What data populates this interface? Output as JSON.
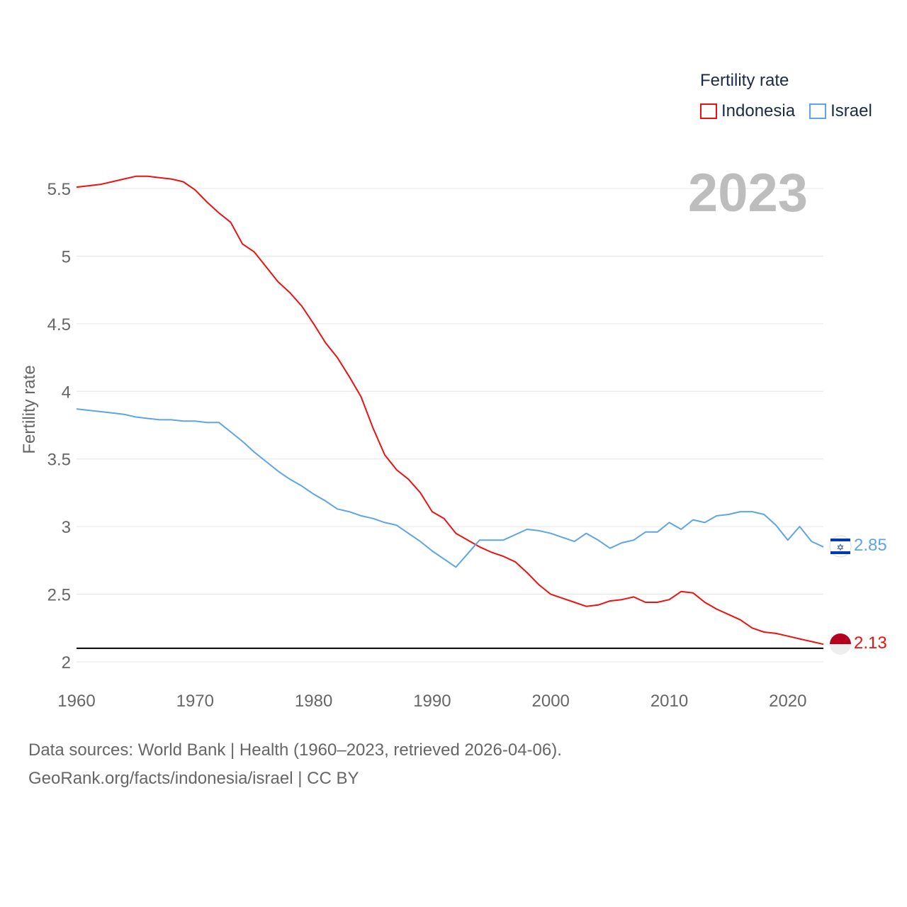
{
  "legend": {
    "title": "Fertility rate",
    "items": [
      {
        "name": "Indonesia",
        "color": "#ee1111"
      },
      {
        "name": "Israel",
        "color": "#5ea4e6"
      }
    ]
  },
  "year_label": "2023",
  "footer": {
    "line1": "Data sources: World Bank | Health (1960–2023, retrieved 2026-04-06).",
    "line2": "GeoRank.org/facts/indonesia/israel | CC BY"
  },
  "end_labels": {
    "israel": "2.85",
    "indonesia": "2.13"
  },
  "chart_data": {
    "type": "line",
    "title": "Fertility rate",
    "xlabel": "",
    "ylabel": "Fertility rate",
    "xlim": [
      1960,
      2023
    ],
    "ylim": [
      2.0,
      5.6
    ],
    "x_ticks": [
      1960,
      1970,
      1980,
      1990,
      2000,
      2010,
      2020
    ],
    "y_ticks": [
      2,
      2.5,
      3,
      3.5,
      4,
      4.5,
      5,
      5.5
    ],
    "y_tick_labels": [
      "2",
      "2.5",
      "3",
      "3.5",
      "4",
      "4.5",
      "5",
      "5.5"
    ],
    "reference_line": 2.1,
    "grid": true,
    "x": [
      1960,
      1961,
      1962,
      1963,
      1964,
      1965,
      1966,
      1967,
      1968,
      1969,
      1970,
      1971,
      1972,
      1973,
      1974,
      1975,
      1976,
      1977,
      1978,
      1979,
      1980,
      1981,
      1982,
      1983,
      1984,
      1985,
      1986,
      1987,
      1988,
      1989,
      1990,
      1991,
      1992,
      1993,
      1994,
      1995,
      1996,
      1997,
      1998,
      1999,
      2000,
      2001,
      2002,
      2003,
      2004,
      2005,
      2006,
      2007,
      2008,
      2009,
      2010,
      2011,
      2012,
      2013,
      2014,
      2015,
      2016,
      2017,
      2018,
      2019,
      2020,
      2021,
      2022,
      2023
    ],
    "series": [
      {
        "name": "Indonesia",
        "color": "#ee1111",
        "values": [
          5.51,
          5.52,
          5.53,
          5.55,
          5.57,
          5.59,
          5.59,
          5.58,
          5.57,
          5.55,
          5.49,
          5.4,
          5.32,
          5.25,
          5.09,
          5.03,
          4.92,
          4.81,
          4.73,
          4.63,
          4.5,
          4.36,
          4.25,
          4.11,
          3.96,
          3.73,
          3.53,
          3.42,
          3.35,
          3.25,
          3.11,
          3.06,
          2.95,
          2.9,
          2.85,
          2.81,
          2.78,
          2.74,
          2.66,
          2.57,
          2.5,
          2.47,
          2.44,
          2.41,
          2.42,
          2.45,
          2.46,
          2.48,
          2.44,
          2.44,
          2.46,
          2.52,
          2.51,
          2.44,
          2.39,
          2.35,
          2.31,
          2.25,
          2.22,
          2.21,
          2.19,
          2.17,
          2.15,
          2.13
        ]
      },
      {
        "name": "Israel",
        "color": "#5ea4e6",
        "values": [
          3.87,
          3.86,
          3.85,
          3.84,
          3.83,
          3.81,
          3.8,
          3.79,
          3.79,
          3.78,
          3.78,
          3.77,
          3.77,
          3.7,
          3.63,
          3.55,
          3.48,
          3.41,
          3.35,
          3.3,
          3.24,
          3.19,
          3.13,
          3.11,
          3.08,
          3.06,
          3.03,
          3.01,
          2.95,
          2.89,
          2.82,
          2.76,
          2.7,
          2.8,
          2.9,
          2.9,
          2.9,
          2.94,
          2.98,
          2.97,
          2.95,
          2.92,
          2.89,
          2.95,
          2.9,
          2.84,
          2.88,
          2.9,
          2.96,
          2.96,
          3.03,
          2.98,
          3.05,
          3.03,
          3.08,
          3.09,
          3.11,
          3.11,
          3.09,
          3.01,
          2.9,
          3.0,
          2.89,
          2.85
        ]
      }
    ]
  }
}
